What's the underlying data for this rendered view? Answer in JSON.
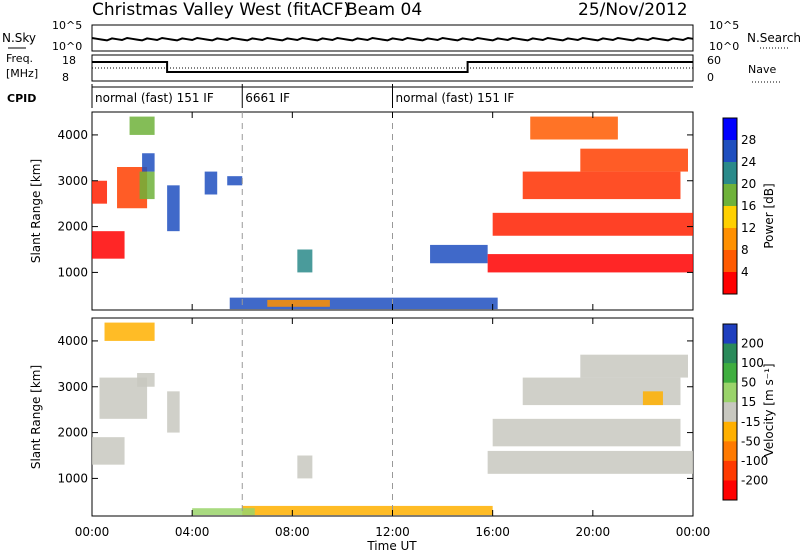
{
  "header": {
    "title": "Christmas Valley West (fitACF)",
    "beam": "Beam 04",
    "date": "25/Nov/2012"
  },
  "strips": {
    "sky_label": "N.Sky",
    "sky_ticks": [
      "10^5",
      "10^0"
    ],
    "search_label": "N.Search",
    "freq_label": "Freq.",
    "freq_unit": "[MHz]",
    "freq_ticks": [
      "18",
      "8"
    ],
    "nave_ticks": [
      "60",
      "0"
    ],
    "nave_label": "Nave",
    "cpid_label": "CPID",
    "cpid_segments": [
      {
        "start": 0,
        "end": 6,
        "label": "normal (fast) 151 IF"
      },
      {
        "start": 6,
        "end": 12,
        "label": "6661 IF"
      },
      {
        "start": 12,
        "end": 24,
        "label": "normal (fast) 151 IF"
      }
    ]
  },
  "chart_data": [
    {
      "type": "heatmap",
      "panel": "power",
      "ylabel": "Slant Range [km]",
      "xlabel": "",
      "xlim": [
        0,
        24
      ],
      "ylim": [
        180,
        4500
      ],
      "ytick_labels": [
        "1000",
        "2000",
        "3000",
        "4000"
      ],
      "yticks": [
        1000,
        2000,
        3000,
        4000
      ],
      "colorbar_label": "Power [dB]",
      "colorbar_ticks": [
        "4",
        "8",
        "12",
        "16",
        "20",
        "24",
        "28"
      ],
      "colorbar_colors": [
        "#0000ff",
        "#1f4fbf",
        "#2a8a8a",
        "#6fb23a",
        "#ffd000",
        "#ff9000",
        "#ff5a00",
        "#ff0000"
      ],
      "mode_boundaries": [
        6,
        12
      ],
      "echo_regions": [
        {
          "t0": 0.0,
          "t1": 1.3,
          "r0": 1300,
          "r1": 1900,
          "color": "#ff0000"
        },
        {
          "t0": 0.0,
          "t1": 0.6,
          "r0": 2500,
          "r1": 3000,
          "color": "#ff2000"
        },
        {
          "t0": 1.0,
          "t1": 2.2,
          "r0": 2400,
          "r1": 3300,
          "color": "#ff4000"
        },
        {
          "t0": 1.9,
          "t1": 2.5,
          "r0": 2600,
          "r1": 3200,
          "color": "#6fb23a"
        },
        {
          "t0": 2.0,
          "t1": 2.5,
          "r0": 3200,
          "r1": 3600,
          "color": "#1f4fbf"
        },
        {
          "t0": 1.5,
          "t1": 2.5,
          "r0": 4000,
          "r1": 4400,
          "color": "#6fb23a"
        },
        {
          "t0": 3.0,
          "t1": 3.5,
          "r0": 1900,
          "r1": 2900,
          "color": "#1f4fbf"
        },
        {
          "t0": 4.5,
          "t1": 5.0,
          "r0": 2700,
          "r1": 3200,
          "color": "#1f4fbf"
        },
        {
          "t0": 5.4,
          "t1": 6.0,
          "r0": 2900,
          "r1": 3100,
          "color": "#1f4fbf"
        },
        {
          "t0": 8.2,
          "t1": 8.8,
          "r0": 1000,
          "r1": 1500,
          "color": "#2a8a8a"
        },
        {
          "t0": 5.5,
          "t1": 16.2,
          "r0": 200,
          "r1": 450,
          "color": "#1f4fbf"
        },
        {
          "t0": 7.0,
          "t1": 9.5,
          "r0": 250,
          "r1": 400,
          "color": "#ff9000"
        },
        {
          "t0": 13.5,
          "t1": 15.8,
          "r0": 1200,
          "r1": 1600,
          "color": "#1f4fbf"
        },
        {
          "t0": 15.8,
          "t1": 24.0,
          "r0": 1000,
          "r1": 1400,
          "color": "#ff0000"
        },
        {
          "t0": 16.0,
          "t1": 24.0,
          "r0": 1800,
          "r1": 2300,
          "color": "#ff2000"
        },
        {
          "t0": 17.2,
          "t1": 23.5,
          "r0": 2600,
          "r1": 3200,
          "color": "#ff3000"
        },
        {
          "t0": 19.5,
          "t1": 23.8,
          "r0": 3200,
          "r1": 3700,
          "color": "#ff4000"
        },
        {
          "t0": 17.5,
          "t1": 21.0,
          "r0": 3900,
          "r1": 4400,
          "color": "#ff5a00"
        }
      ]
    },
    {
      "type": "heatmap",
      "panel": "velocity",
      "ylabel": "Slant Range [km]",
      "xlabel": "Time UT",
      "xlim": [
        0,
        24
      ],
      "ylim": [
        180,
        4500
      ],
      "xtick_labels": [
        "00:00",
        "04:00",
        "08:00",
        "12:00",
        "16:00",
        "20:00",
        "00:00"
      ],
      "xticks": [
        0,
        4,
        8,
        12,
        16,
        20,
        24
      ],
      "ytick_labels": [
        "1000",
        "2000",
        "3000",
        "4000"
      ],
      "yticks": [
        1000,
        2000,
        3000,
        4000
      ],
      "colorbar_label": "Velocity [m s⁻¹]",
      "colorbar_ticks": [
        "200",
        "100",
        "50",
        "15",
        "-15",
        "-50",
        "-100",
        "-200"
      ],
      "colorbar_colors": [
        "#1f3fbf",
        "#2a8a5a",
        "#3fae3f",
        "#9ad36a",
        "#c8c8c0",
        "#ffb000",
        "#ff7a00",
        "#ff3a00",
        "#ff0000"
      ],
      "mode_boundaries": [
        6,
        12
      ],
      "echo_regions": [
        {
          "t0": 0.0,
          "t1": 1.3,
          "r0": 1300,
          "r1": 1900,
          "color": "#c8c8c0"
        },
        {
          "t0": 0.3,
          "t1": 2.2,
          "r0": 2300,
          "r1": 3200,
          "color": "#c8c8c0"
        },
        {
          "t0": 1.8,
          "t1": 2.5,
          "r0": 3000,
          "r1": 3300,
          "color": "#c8c8c0"
        },
        {
          "t0": 0.5,
          "t1": 2.5,
          "r0": 4000,
          "r1": 4400,
          "color": "#ffb000"
        },
        {
          "t0": 3.0,
          "t1": 3.5,
          "r0": 2000,
          "r1": 2900,
          "color": "#c8c8c0"
        },
        {
          "t0": 8.2,
          "t1": 8.8,
          "r0": 1000,
          "r1": 1500,
          "color": "#c8c8c0"
        },
        {
          "t0": 6.0,
          "t1": 16.0,
          "r0": 200,
          "r1": 400,
          "color": "#ffb000"
        },
        {
          "t0": 4.0,
          "t1": 6.5,
          "r0": 200,
          "r1": 350,
          "color": "#9ad36a"
        },
        {
          "t0": 15.8,
          "t1": 24.0,
          "r0": 1100,
          "r1": 1600,
          "color": "#c8c8c0"
        },
        {
          "t0": 16.0,
          "t1": 23.5,
          "r0": 1700,
          "r1": 2300,
          "color": "#c8c8c0"
        },
        {
          "t0": 17.2,
          "t1": 23.5,
          "r0": 2600,
          "r1": 3200,
          "color": "#c8c8c0"
        },
        {
          "t0": 19.5,
          "t1": 23.8,
          "r0": 3200,
          "r1": 3700,
          "color": "#c8c8c0"
        },
        {
          "t0": 22.0,
          "t1": 22.8,
          "r0": 2600,
          "r1": 2900,
          "color": "#ffb000"
        }
      ]
    }
  ]
}
